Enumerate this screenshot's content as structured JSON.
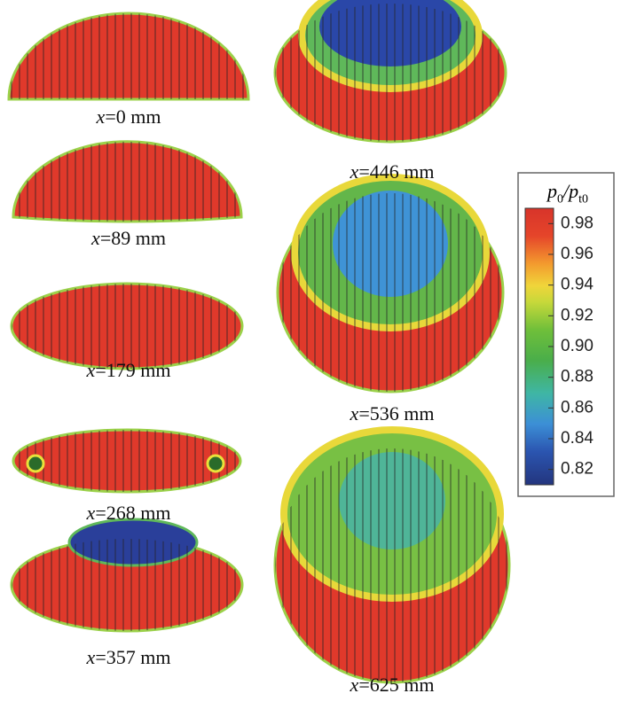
{
  "panels": [
    {
      "label": "x=0 mm"
    },
    {
      "label": "x=89 mm"
    },
    {
      "label": "x=179 mm"
    },
    {
      "label": "x=268 mm"
    },
    {
      "label": "x=357 mm"
    },
    {
      "label": "x=446 mm"
    },
    {
      "label": "x=536 mm"
    },
    {
      "label": "x=625 mm"
    }
  ],
  "colorbar": {
    "title_parts": [
      "p",
      "0",
      "/",
      "p",
      "t0"
    ],
    "lim": [
      0.81,
      0.99
    ],
    "ticks": [
      {
        "value": 0.98,
        "label": "0.98"
      },
      {
        "value": 0.96,
        "label": "0.96"
      },
      {
        "value": 0.94,
        "label": "0.94"
      },
      {
        "value": 0.92,
        "label": "0.92"
      },
      {
        "value": 0.9,
        "label": "0.90"
      },
      {
        "value": 0.88,
        "label": "0.88"
      },
      {
        "value": 0.86,
        "label": "0.86"
      },
      {
        "value": 0.84,
        "label": "0.84"
      },
      {
        "value": 0.82,
        "label": "0.82"
      }
    ]
  }
}
